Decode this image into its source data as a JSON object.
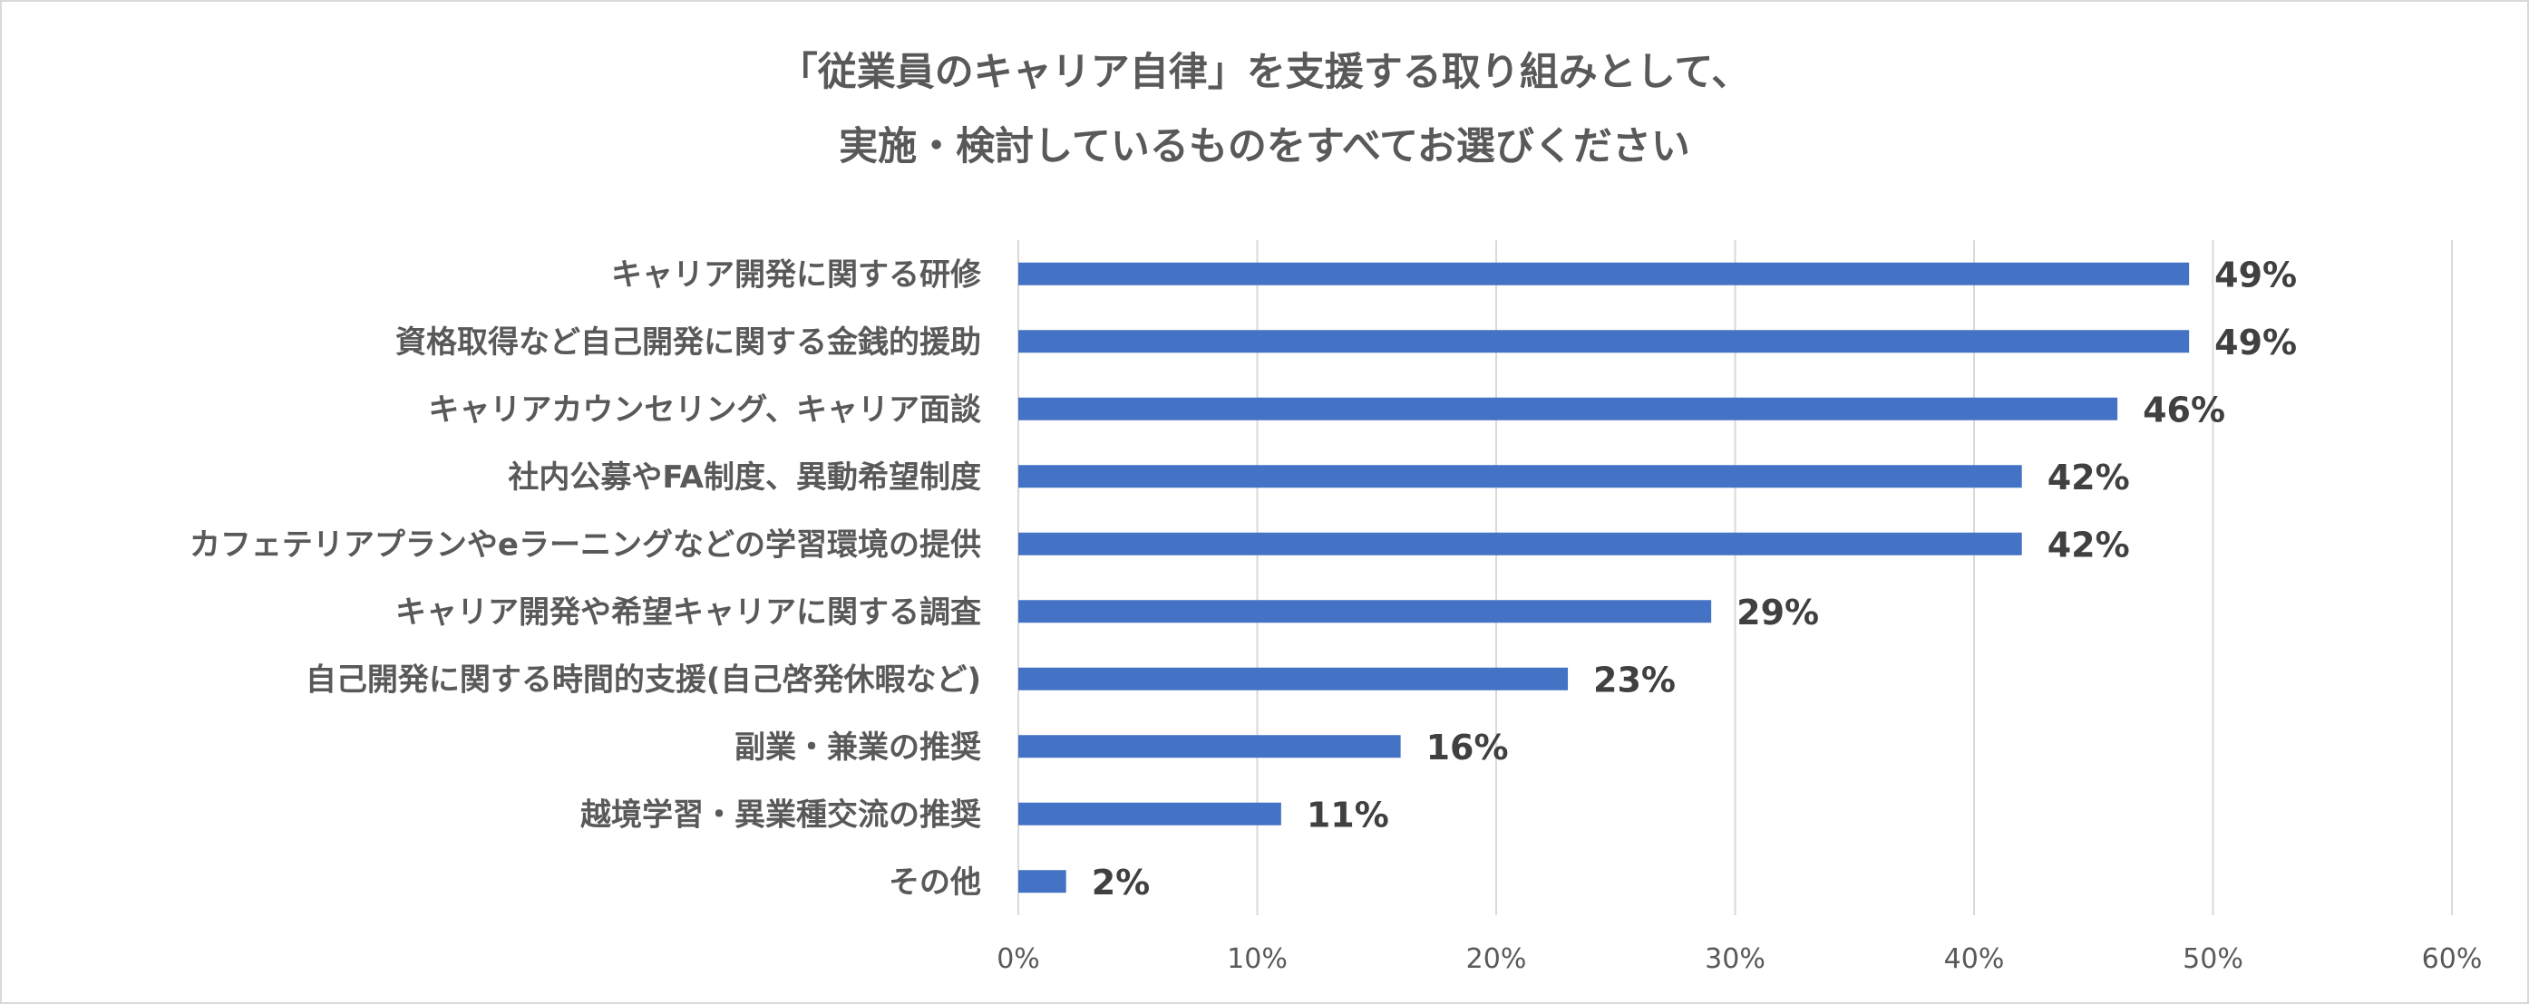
{
  "chart_data": {
    "type": "bar",
    "orientation": "horizontal",
    "title_lines": [
      "「従業員のキャリア自律」を支援する取り組みとして、",
      "実施・検討しているものをすべてお選びください"
    ],
    "categories": [
      "キャリア開発に関する研修",
      "資格取得など自己開発に関する金銭的援助",
      "キャリアカウンセリング、キャリア面談",
      "社内公募やFA制度、異動希望制度",
      "カフェテリアプランやeラーニングなどの学習環境の提供",
      "キャリア開発や希望キャリアに関する調査",
      "自己開発に関する時間的支援(自己啓発休暇など)",
      "副業・兼業の推奨",
      "越境学習・異業種交流の推奨",
      "その他"
    ],
    "values": [
      49,
      49,
      46,
      42,
      42,
      29,
      23,
      16,
      11,
      2
    ],
    "value_labels": [
      "49%",
      "49%",
      "46%",
      "42%",
      "42%",
      "29%",
      "23%",
      "16%",
      "11%",
      "2%"
    ],
    "x_ticks": [
      0,
      10,
      20,
      30,
      40,
      50,
      60
    ],
    "x_tick_labels": [
      "0%",
      "10%",
      "20%",
      "30%",
      "40%",
      "50%",
      "60%"
    ],
    "xlim": [
      0,
      60
    ],
    "xlabel": "",
    "ylabel": "",
    "grid": true,
    "bar_color": "#4472c4"
  }
}
